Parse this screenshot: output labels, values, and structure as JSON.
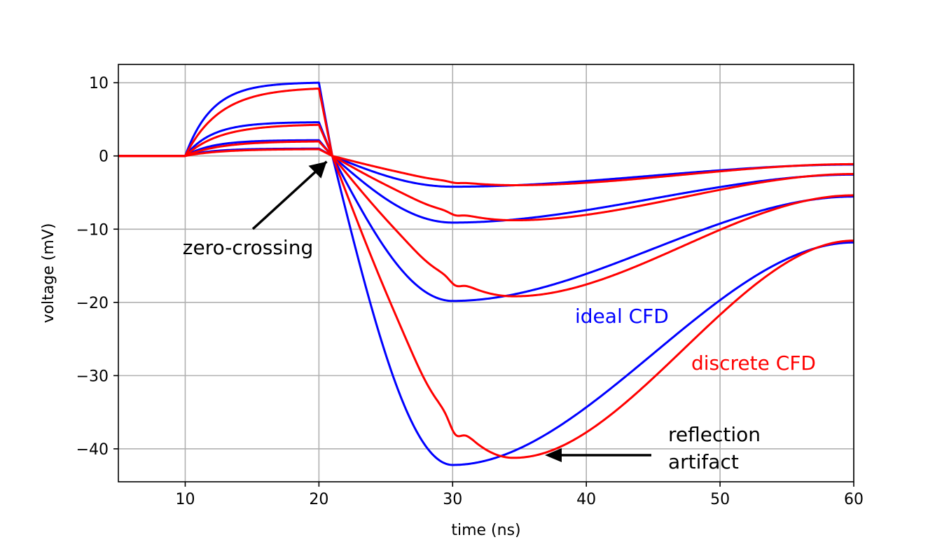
{
  "chart_data": {
    "type": "line",
    "title": "",
    "xlabel": "time (ns)",
    "ylabel": "voltage (mV)",
    "xlim": [
      5,
      60
    ],
    "ylim": [
      -44.5,
      12.5
    ],
    "grid": true,
    "xticks": [
      10,
      20,
      30,
      40,
      50,
      60
    ],
    "yticks": [
      10,
      0,
      -10,
      -20,
      -30,
      -40
    ],
    "xtick_labels": [
      "10",
      "20",
      "30",
      "40",
      "50",
      "60"
    ],
    "ytick_labels": [
      "10",
      "0",
      "−10",
      "−20",
      "−30",
      "−40"
    ],
    "series": [
      {
        "name": "ideal CFD",
        "color": "#0000ff",
        "amplitudes": [
          1,
          2.15,
          4.6,
          10
        ],
        "rise_tau_ns": 2.0,
        "peak_ns": 30,
        "min_values": [
          -4.2,
          -9.1,
          -19.8,
          -42.2
        ],
        "reflection": false
      },
      {
        "name": "discrete CFD",
        "color": "#ff0000",
        "amplitudes": [
          0.92,
          1.98,
          4.25,
          9.2
        ],
        "rise_tau_ns": 2.6,
        "peak_ns": 30,
        "min_values": [
          -4.0,
          -8.8,
          -19.2,
          -41.3
        ],
        "reflection": true,
        "reflection_delay_ns": 4.5
      }
    ],
    "annotations": [
      {
        "text": "zero-crossing",
        "x": 21,
        "y": 0,
        "text_x": 15,
        "text_y": -10.5,
        "color": "#000000"
      },
      {
        "text": "reflection\nartifact",
        "lines": [
          "reflection",
          "artifact"
        ],
        "x": 36,
        "y": -41.3,
        "text_x": 46,
        "text_y": -41,
        "color": "#000000"
      },
      {
        "text": "ideal CFD",
        "x": 43,
        "y": -22.5,
        "color": "#0000ff"
      },
      {
        "text": "discrete CFD",
        "x": 53,
        "y": -29,
        "color": "#ff0000"
      }
    ]
  }
}
